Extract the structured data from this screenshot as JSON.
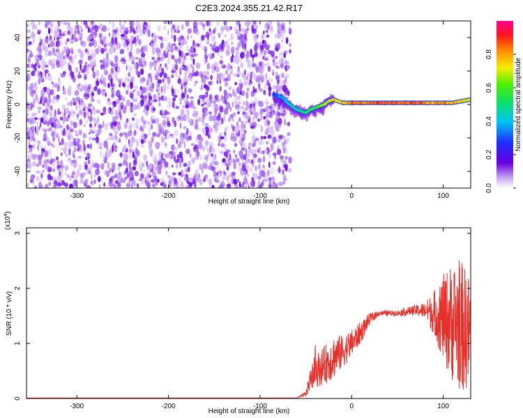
{
  "title": "C2E3.2024.355.21.42.R17",
  "chart_data": [
    {
      "type": "heatmap",
      "xlabel": "Height of straight line (km)",
      "ylabel": "Frequency (Hz)",
      "xlim": [
        -355,
        130
      ],
      "ylim": [
        -50,
        50
      ],
      "xticks": [
        -300,
        -200,
        -100,
        0,
        100
      ],
      "yticks": [
        -40,
        -20,
        0,
        20,
        40
      ],
      "noise_region_x": [
        -355,
        -75
      ],
      "noise_amplitude_range": [
        0.0,
        0.25
      ],
      "ridge": {
        "x": [
          -85,
          -80,
          -75,
          -70,
          -65,
          -60,
          -55,
          -50,
          -45,
          -40,
          -35,
          -30,
          -25,
          -20,
          -15,
          -10,
          -5,
          0,
          10,
          20,
          30,
          40,
          50,
          60,
          70,
          80,
          90,
          100,
          110,
          120,
          130
        ],
        "freq": [
          6,
          5,
          4,
          1,
          -1,
          -3,
          -4,
          -5,
          -3,
          -2,
          -1,
          0,
          2,
          3,
          2,
          1,
          1,
          1,
          1,
          1,
          1,
          1,
          1,
          1,
          1,
          1,
          1,
          1,
          1,
          2,
          3
        ],
        "amplitude": [
          0.3,
          0.35,
          0.4,
          0.45,
          0.5,
          0.5,
          0.55,
          0.55,
          0.6,
          0.6,
          0.65,
          0.7,
          0.75,
          0.8,
          0.8,
          0.85,
          0.85,
          0.9,
          0.9,
          0.9,
          0.95,
          0.95,
          0.95,
          0.9,
          0.95,
          0.9,
          0.85,
          0.9,
          0.85,
          0.8,
          0.75
        ]
      },
      "colorbar": {
        "label": "Normalized spectral amplitude",
        "range": [
          0,
          1
        ],
        "ticks": [
          "0.0",
          "0.2",
          "0.4",
          "0.6",
          "0.8"
        ],
        "colormap": "rainbow (purple-blue-cyan-green-yellow-red-magenta)"
      }
    },
    {
      "type": "line",
      "xlabel": "Height of straight line (km)",
      "ylabel": "SNR (10 * v/v)",
      "y_multiplier": "(x10",
      "y_exponent": "4",
      "y_multiplier_close": ")",
      "xlim": [
        -355,
        130
      ],
      "ylim": [
        0,
        3.1
      ],
      "xticks": [
        -300,
        -200,
        -100,
        0,
        100
      ],
      "yticks": [
        0,
        1,
        2,
        3
      ],
      "series": [
        {
          "color": "#e8302a",
          "envelope": {
            "x": [
              -355,
              -60,
              -50,
              -45,
              -40,
              -30,
              -20,
              -10,
              0,
              10,
              20,
              30,
              40,
              50,
              60,
              70,
              80,
              90,
              100,
              110,
              120,
              130
            ],
            "mean": [
              0.01,
              0.01,
              0.08,
              0.35,
              0.5,
              0.6,
              0.75,
              0.85,
              1.0,
              1.2,
              1.45,
              1.55,
              1.55,
              1.55,
              1.58,
              1.6,
              1.6,
              1.55,
              1.45,
              1.4,
              1.3,
              1.2
            ],
            "spread": [
              0.0,
              0.0,
              0.05,
              0.2,
              0.3,
              0.35,
              0.4,
              0.3,
              0.25,
              0.2,
              0.1,
              0.05,
              0.05,
              0.05,
              0.08,
              0.1,
              0.15,
              0.4,
              0.8,
              1.1,
              1.2,
              1.0
            ]
          }
        }
      ]
    }
  ]
}
